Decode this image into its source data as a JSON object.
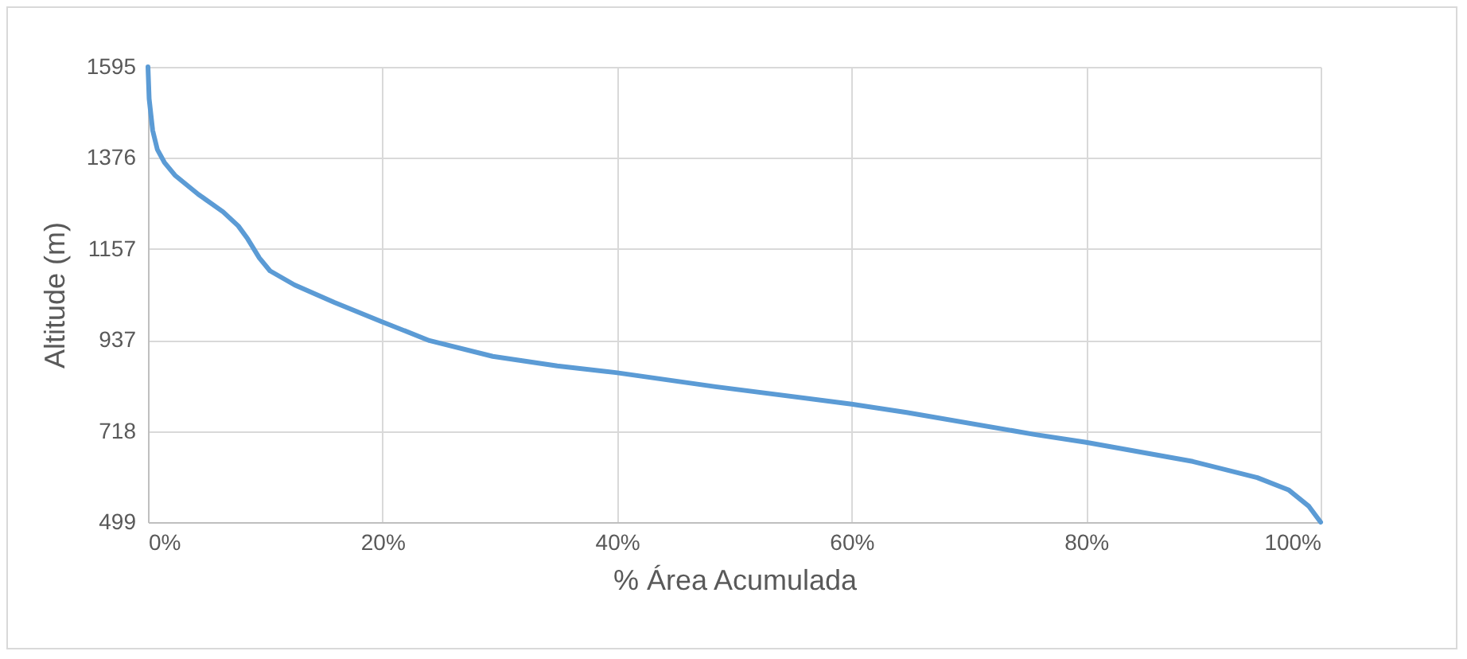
{
  "chart_data": {
    "type": "line",
    "xlabel": "% Área Acumulada",
    "ylabel": "Altitude (m)",
    "x": [
      0,
      0.1,
      0.4,
      0.8,
      1.4,
      2.3,
      4.3,
      6.4,
      7.7,
      8.5,
      9.5,
      10.4,
      12.5,
      15.9,
      19.9,
      24,
      29.4,
      34.9,
      39.9,
      48.4,
      60,
      64.7,
      75.6,
      80,
      89.1,
      94.6,
      97.3,
      99,
      100
    ],
    "series": [
      {
        "color": "#5b9bd5",
        "values": [
          1595,
          1518,
          1442,
          1396,
          1365,
          1334,
          1288,
          1246,
          1212,
          1181,
          1135,
          1104,
          1070,
          1028,
          982,
          936,
          898,
          875,
          859,
          825,
          783,
          763,
          710,
          691,
          645,
          606,
          576,
          537,
          499
        ]
      }
    ],
    "xlim": [
      0,
      100
    ],
    "xticks": [
      {
        "value": 0,
        "label": "0%"
      },
      {
        "value": 20,
        "label": "20%"
      },
      {
        "value": 40,
        "label": "40%"
      },
      {
        "value": 60,
        "label": "60%"
      },
      {
        "value": 80,
        "label": "80%"
      },
      {
        "value": 100,
        "label": "100%"
      }
    ],
    "ylim": [
      499,
      1595
    ],
    "yticks": [
      499,
      718,
      937,
      1157,
      1376,
      1595
    ],
    "grid": true,
    "marker": "none",
    "line_style": "solid"
  }
}
